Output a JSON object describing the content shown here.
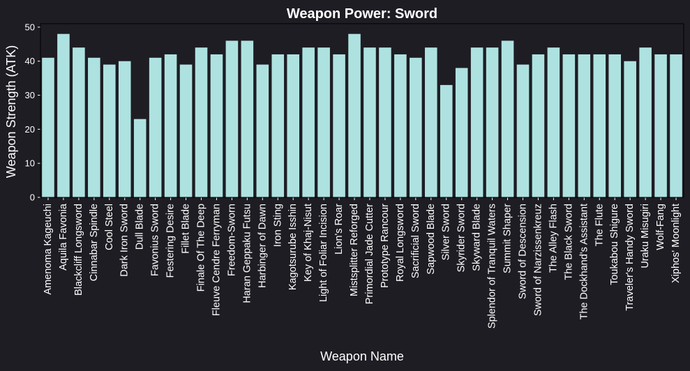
{
  "chart_data": {
    "type": "bar",
    "title": "Weapon Power: Sword",
    "xlabel": "Weapon Name",
    "ylabel": "Weapon Strength (ATK)",
    "ylim": [
      0,
      51
    ],
    "yticks": [
      0,
      10,
      20,
      30,
      40,
      50
    ],
    "grid": false,
    "bar_color": "#aee2e0",
    "background_color": "#1e1d24",
    "categories": [
      "Amenoma Kageuchi",
      "Aquila Favonia",
      "Blackcliff Longsword",
      "Cinnabar Spindle",
      "Cool Steel",
      "Dark Iron Sword",
      "Dull Blade",
      "Favonius Sword",
      "Festering Desire",
      "Fillet Blade",
      "Finale Of The Deep",
      "Fleuve Cendre Ferryman",
      "Freedom-Sworn",
      "Haran Geppaku Futsu",
      "Harbinger of Dawn",
      "Iron Sting",
      "Kagotsurube Isshin",
      "Key of Khaj-Nisut",
      "Light of Foliar Incision",
      "Lion's Roar",
      "Mistsplitter Reforged",
      "Primordial Jade Cutter",
      "Prototype Rancour",
      "Royal Longsword",
      "Sacrificial Sword",
      "Sapwood Blade",
      "Silver Sword",
      "Skyrider Sword",
      "Skyward Blade",
      "Splendor of Tranquil Waters",
      "Summit Shaper",
      "Sword of Descension",
      "Sword of Narzissenkreuz",
      "The Alley Flash",
      "The Black Sword",
      "The Dockhand's Assistant",
      "The Flute",
      "Toukabou Shigure",
      "Traveler's Handy Sword",
      "Uraku Misugiri",
      "Wolf-Fang",
      "Xiphos' Moonlight"
    ],
    "values": [
      41,
      48,
      44,
      41,
      39,
      40,
      23,
      41,
      42,
      39,
      44,
      42,
      46,
      46,
      39,
      42,
      42,
      44,
      44,
      42,
      48,
      44,
      44,
      42,
      41,
      44,
      33,
      38,
      44,
      44,
      46,
      39,
      42,
      44,
      42,
      42,
      42,
      42,
      40,
      44,
      42,
      42
    ]
  }
}
